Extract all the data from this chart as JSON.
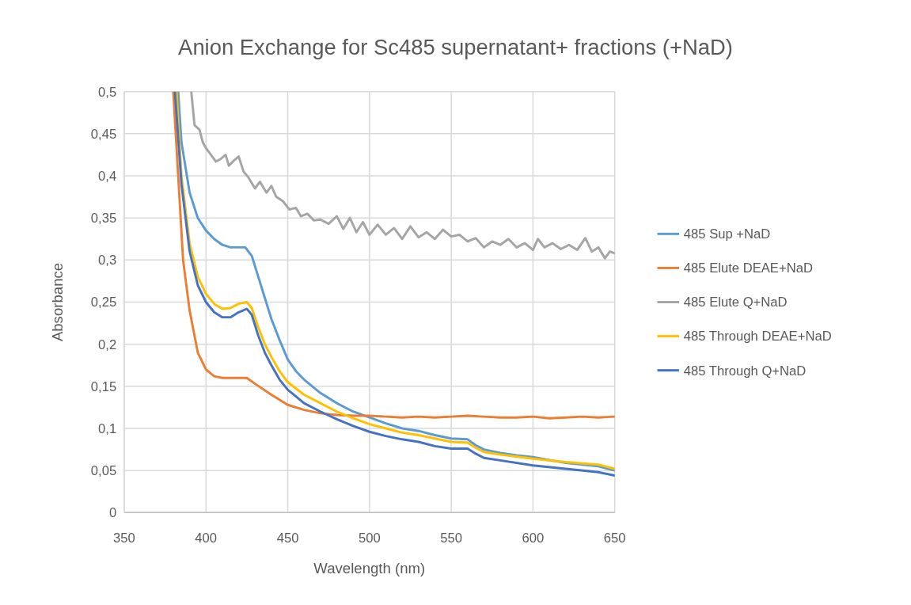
{
  "chart_data": {
    "type": "line",
    "title": "Anion Exchange for Sc485 supernatant+ fractions (+NaD)",
    "xlabel": "Wavelength (nm)",
    "ylabel": "Absorbance",
    "xlim": [
      350,
      650
    ],
    "xticks": [
      350,
      400,
      450,
      500,
      550,
      600,
      650
    ],
    "ylim": [
      0,
      0.5
    ],
    "yticks": [
      0,
      {
        "value": 0.05,
        "label": "0,05"
      },
      {
        "value": 0.1,
        "label": "0,1"
      },
      {
        "value": 0.15,
        "label": "0,15"
      },
      {
        "value": 0.2,
        "label": "0,2"
      },
      {
        "value": 0.25,
        "label": "0,25"
      },
      {
        "value": 0.3,
        "label": "0,3"
      },
      {
        "value": 0.35,
        "label": "0,35"
      },
      {
        "value": 0.4,
        "label": "0,4"
      },
      {
        "value": 0.45,
        "label": "0,45"
      },
      {
        "value": 0.5,
        "label": "0,5"
      }
    ],
    "grid": true,
    "legend": "right",
    "marker": "none",
    "line_style": "solid",
    "series": [
      {
        "name": "485 Sup +NaD",
        "color": "#5b9bd5",
        "x": [
          383,
          385,
          390,
          395,
          400,
          405,
          410,
          415,
          420,
          424,
          428,
          432,
          436,
          440,
          445,
          450,
          455,
          460,
          470,
          480,
          490,
          500,
          510,
          520,
          530,
          540,
          550,
          560,
          565,
          570,
          580,
          590,
          600,
          620,
          640,
          650
        ],
        "values": [
          0.5,
          0.44,
          0.38,
          0.35,
          0.335,
          0.325,
          0.318,
          0.315,
          0.315,
          0.315,
          0.305,
          0.28,
          0.255,
          0.23,
          0.205,
          0.182,
          0.168,
          0.158,
          0.142,
          0.13,
          0.12,
          0.113,
          0.106,
          0.1,
          0.097,
          0.092,
          0.088,
          0.087,
          0.08,
          0.075,
          0.071,
          0.068,
          0.066,
          0.059,
          0.055,
          0.05
        ]
      },
      {
        "name": "485 Elute DEAE+NaD",
        "color": "#ed7d31",
        "x": [
          380,
          383,
          386,
          390,
          395,
          400,
          405,
          410,
          420,
          425,
          430,
          440,
          450,
          460,
          470,
          480,
          490,
          500,
          510,
          520,
          530,
          540,
          550,
          560,
          570,
          580,
          590,
          600,
          610,
          620,
          630,
          640,
          650
        ],
        "values": [
          0.5,
          0.4,
          0.3,
          0.24,
          0.19,
          0.17,
          0.162,
          0.16,
          0.16,
          0.16,
          0.153,
          0.14,
          0.128,
          0.122,
          0.118,
          0.116,
          0.115,
          0.115,
          0.114,
          0.113,
          0.114,
          0.113,
          0.114,
          0.115,
          0.114,
          0.113,
          0.113,
          0.114,
          0.112,
          0.113,
          0.114,
          0.113,
          0.114
        ]
      },
      {
        "name": "485 Elute Q+NaD",
        "color": "#a5a5a5",
        "x": [
          391,
          393,
          396,
          398,
          400,
          403,
          406,
          409,
          412,
          414,
          417,
          420,
          423,
          426,
          430,
          433,
          437,
          440,
          443,
          447,
          451,
          455,
          458,
          462,
          466,
          470,
          475,
          480,
          484,
          488,
          492,
          496,
          500,
          505,
          510,
          515,
          520,
          525,
          530,
          535,
          540,
          545,
          550,
          555,
          560,
          565,
          570,
          575,
          580,
          585,
          590,
          595,
          600,
          603,
          607,
          612,
          617,
          622,
          627,
          632,
          636,
          640,
          644,
          647,
          650
        ],
        "values": [
          0.5,
          0.46,
          0.455,
          0.44,
          0.433,
          0.425,
          0.417,
          0.42,
          0.425,
          0.412,
          0.418,
          0.423,
          0.405,
          0.398,
          0.385,
          0.393,
          0.38,
          0.388,
          0.375,
          0.37,
          0.36,
          0.362,
          0.352,
          0.355,
          0.347,
          0.348,
          0.343,
          0.352,
          0.337,
          0.35,
          0.333,
          0.345,
          0.33,
          0.342,
          0.33,
          0.338,
          0.325,
          0.34,
          0.327,
          0.333,
          0.325,
          0.336,
          0.328,
          0.33,
          0.322,
          0.326,
          0.315,
          0.322,
          0.318,
          0.325,
          0.315,
          0.32,
          0.312,
          0.325,
          0.315,
          0.32,
          0.313,
          0.318,
          0.312,
          0.326,
          0.31,
          0.315,
          0.302,
          0.31,
          0.308
        ]
      },
      {
        "name": "485 Through DEAE+NaD",
        "color": "#ffc000",
        "x": [
          382,
          385,
          390,
          395,
          400,
          405,
          410,
          415,
          420,
          425,
          428,
          432,
          436,
          440,
          445,
          450,
          460,
          470,
          480,
          490,
          500,
          510,
          520,
          530,
          540,
          550,
          560,
          565,
          570,
          580,
          600,
          620,
          640,
          650
        ],
        "values": [
          0.5,
          0.4,
          0.32,
          0.28,
          0.26,
          0.248,
          0.242,
          0.243,
          0.248,
          0.25,
          0.243,
          0.22,
          0.2,
          0.185,
          0.168,
          0.155,
          0.14,
          0.13,
          0.12,
          0.112,
          0.105,
          0.1,
          0.095,
          0.092,
          0.088,
          0.084,
          0.083,
          0.077,
          0.072,
          0.069,
          0.064,
          0.06,
          0.057,
          0.052
        ]
      },
      {
        "name": "485 Through Q+NaD",
        "color": "#4472c4",
        "x": [
          381,
          385,
          390,
          395,
          400,
          405,
          410,
          415,
          420,
          425,
          428,
          432,
          436,
          440,
          445,
          450,
          460,
          470,
          480,
          490,
          500,
          510,
          520,
          530,
          540,
          550,
          560,
          565,
          570,
          580,
          600,
          620,
          640,
          650
        ],
        "values": [
          0.5,
          0.39,
          0.31,
          0.27,
          0.25,
          0.238,
          0.232,
          0.232,
          0.238,
          0.242,
          0.235,
          0.21,
          0.19,
          0.175,
          0.158,
          0.146,
          0.13,
          0.12,
          0.111,
          0.103,
          0.096,
          0.091,
          0.087,
          0.084,
          0.079,
          0.076,
          0.076,
          0.07,
          0.065,
          0.062,
          0.056,
          0.052,
          0.048,
          0.044
        ]
      }
    ]
  }
}
